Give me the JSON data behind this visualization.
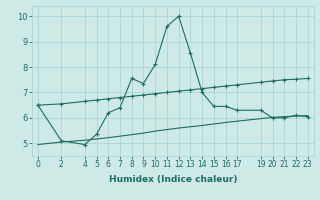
{
  "xlabel": "Humidex (Indice chaleur)",
  "background_color": "#ceeae6",
  "grid_color": "#aed4cf",
  "line_color": "#1a6e64",
  "xlim": [
    -0.5,
    23.5
  ],
  "ylim": [
    4.5,
    10.4
  ],
  "xticks": [
    0,
    2,
    4,
    5,
    6,
    7,
    8,
    9,
    10,
    11,
    12,
    13,
    14,
    15,
    16,
    17,
    19,
    20,
    21,
    22,
    23
  ],
  "yticks": [
    5,
    6,
    7,
    8,
    9,
    10
  ],
  "series1_x": [
    0,
    2,
    4,
    5,
    6,
    7,
    8,
    9,
    10,
    11,
    12,
    13,
    14,
    15,
    16,
    17,
    19,
    20,
    21,
    22,
    23
  ],
  "series1_y": [
    6.5,
    5.1,
    4.95,
    5.35,
    6.2,
    6.4,
    7.55,
    7.35,
    8.1,
    9.6,
    10.0,
    8.55,
    7.0,
    6.45,
    6.45,
    6.3,
    6.3,
    6.0,
    6.0,
    6.1,
    6.05
  ],
  "series2_x": [
    0,
    2,
    4,
    5,
    6,
    7,
    8,
    9,
    10,
    11,
    12,
    13,
    14,
    15,
    16,
    17,
    19,
    20,
    21,
    22,
    23
  ],
  "series2_y": [
    6.5,
    6.55,
    6.65,
    6.7,
    6.75,
    6.8,
    6.85,
    6.9,
    6.95,
    7.0,
    7.05,
    7.1,
    7.15,
    7.2,
    7.25,
    7.3,
    7.4,
    7.45,
    7.5,
    7.52,
    7.55
  ],
  "series3_x": [
    0,
    2,
    4,
    5,
    6,
    7,
    8,
    9,
    10,
    11,
    12,
    13,
    14,
    15,
    16,
    17,
    19,
    20,
    21,
    22,
    23
  ],
  "series3_y": [
    4.95,
    5.05,
    5.12,
    5.17,
    5.22,
    5.28,
    5.34,
    5.4,
    5.48,
    5.54,
    5.6,
    5.65,
    5.7,
    5.76,
    5.82,
    5.87,
    5.97,
    6.02,
    6.05,
    6.07,
    6.09
  ]
}
